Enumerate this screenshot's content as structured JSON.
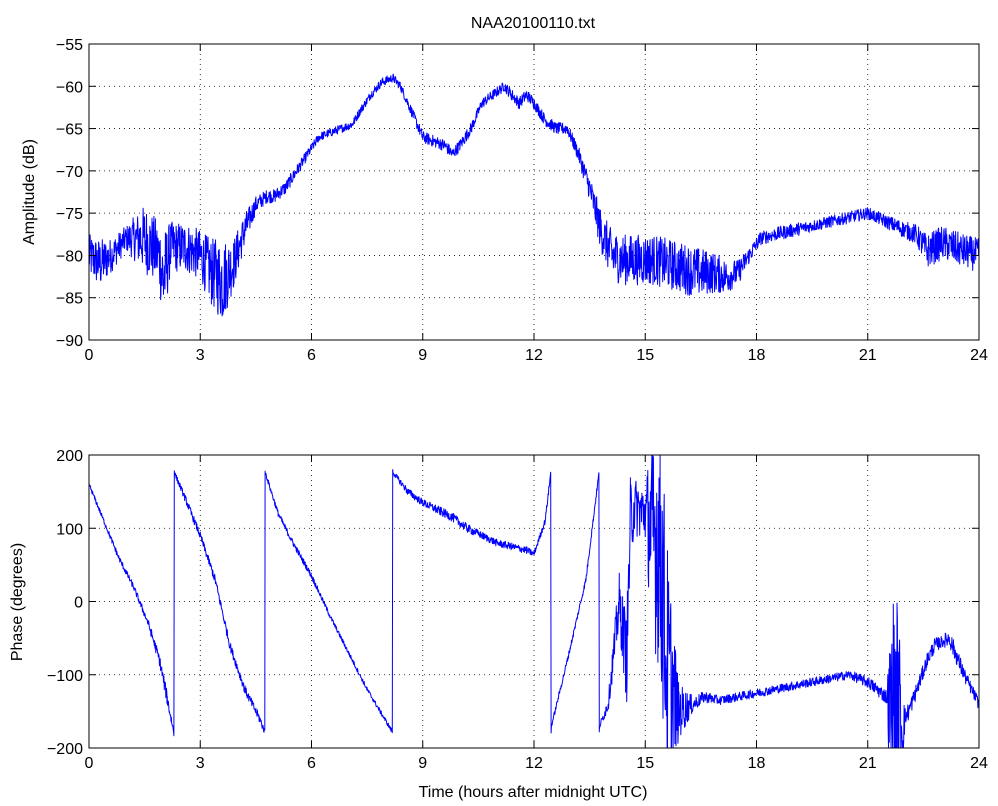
{
  "chart_data": [
    {
      "type": "line",
      "title": "NAA20100110.txt",
      "xlabel": "",
      "ylabel": "Amplitude (dB)",
      "xlim": [
        0,
        24
      ],
      "ylim": [
        -90,
        -55
      ],
      "xticks": [
        0,
        3,
        6,
        9,
        12,
        15,
        18,
        21,
        24
      ],
      "yticks": [
        -55,
        -60,
        -65,
        -70,
        -75,
        -80,
        -85,
        -90
      ],
      "grid": true,
      "color": "#0000ff",
      "series": [
        {
          "x": [
            0,
            0.3,
            0.6,
            1.0,
            1.5,
            1.9,
            2.0,
            2.2,
            2.6,
            3.0,
            3.3,
            3.6,
            3.9,
            4.2,
            4.5,
            4.8,
            5.0,
            5.3,
            5.6,
            5.9,
            6.2,
            6.5,
            6.8,
            7.1,
            7.3,
            7.6,
            7.9,
            8.2,
            8.4,
            8.7,
            9.0,
            9.3,
            9.6,
            9.8,
            10.0,
            10.3,
            10.6,
            10.9,
            11.2,
            11.4,
            11.6,
            11.8,
            12.0,
            12.3,
            12.6,
            12.9,
            13.2,
            13.5,
            13.8,
            14.1,
            14.4,
            14.8,
            15.2,
            15.6,
            16.0,
            16.4,
            16.8,
            17.2,
            17.5,
            17.8,
            18.1,
            18.5,
            19.0,
            19.5,
            20.0,
            20.5,
            21.0,
            21.5,
            22.0,
            22.3,
            22.6,
            22.8,
            23.0,
            23.3,
            23.6,
            24.0
          ],
          "y": [
            -80,
            -81,
            -80,
            -78,
            -78,
            -80,
            -83,
            -79,
            -79,
            -80,
            -82,
            -83,
            -81,
            -77,
            -74,
            -73,
            -73,
            -72,
            -70,
            -68,
            -66,
            -65.5,
            -65,
            -64.5,
            -63,
            -61,
            -59.5,
            -59,
            -60,
            -63,
            -66,
            -66.5,
            -67,
            -68,
            -67,
            -65,
            -62,
            -61,
            -60,
            -61,
            -62,
            -61,
            -62,
            -64,
            -65,
            -65,
            -68,
            -72,
            -77,
            -80,
            -80.5,
            -80.5,
            -80.5,
            -81,
            -81.5,
            -82,
            -82,
            -82.5,
            -82,
            -80,
            -78,
            -77.5,
            -77,
            -76.5,
            -76,
            -75.5,
            -75,
            -76,
            -77,
            -77.5,
            -79.5,
            -79,
            -78.5,
            -79,
            -79.5,
            -80
          ],
          "noise": [
            2.5,
            3,
            2,
            1.5,
            4,
            4,
            6,
            3,
            3,
            3,
            4,
            5,
            3,
            2,
            1,
            0.8,
            0.8,
            0.8,
            0.7,
            0.6,
            0.5,
            0.5,
            0.5,
            0.5,
            0.5,
            0.5,
            0.5,
            0.5,
            0.5,
            0.6,
            0.7,
            0.7,
            0.7,
            0.7,
            0.7,
            0.7,
            0.6,
            0.6,
            0.6,
            0.7,
            0.7,
            0.7,
            0.7,
            0.7,
            0.7,
            0.7,
            0.9,
            1.5,
            2.5,
            3,
            3,
            3,
            3,
            3,
            3,
            3,
            2.5,
            2,
            1.5,
            1,
            0.8,
            0.8,
            0.8,
            0.7,
            0.7,
            0.7,
            0.7,
            0.8,
            1,
            1.2,
            2,
            2,
            2,
            2,
            2,
            2
          ]
        }
      ]
    },
    {
      "type": "line",
      "title": "",
      "xlabel": "Time (hours after midnight UTC)",
      "ylabel": "Phase (degrees)",
      "xlim": [
        0,
        24
      ],
      "ylim": [
        -200,
        200
      ],
      "xticks": [
        0,
        3,
        6,
        9,
        12,
        15,
        18,
        21,
        24
      ],
      "yticks": [
        200,
        100,
        0,
        -100,
        -200
      ],
      "grid": true,
      "color": "#0000ff",
      "series": [
        {
          "x": [
            0,
            0.4,
            0.8,
            1.2,
            1.6,
            1.9,
            2.1,
            2.29,
            2.3,
            2.31,
            2.6,
            3.0,
            3.4,
            3.8,
            4.2,
            4.6,
            4.74,
            4.75,
            4.76,
            5.1,
            5.5,
            6.0,
            6.5,
            7.0,
            7.5,
            8.18,
            8.19,
            8.2,
            8.6,
            9.0,
            9.4,
            9.8,
            10.2,
            10.6,
            11.0,
            11.4,
            11.8,
            12.0,
            12.3,
            12.45,
            12.46,
            12.47,
            12.9,
            13.4,
            13.75,
            13.76,
            13.77,
            14.0,
            14.3,
            14.5,
            14.6,
            14.7,
            15.0,
            15.2,
            15.4,
            15.6,
            15.9,
            16.3,
            16.6,
            17.0,
            17.5,
            18.0,
            18.5,
            19.0,
            19.5,
            20.0,
            20.5,
            21.0,
            21.5,
            21.7,
            21.8,
            22.0,
            22.1,
            22.4,
            22.6,
            22.8,
            23.0,
            23.2,
            23.4,
            23.6,
            23.8,
            24.0
          ],
          "y": [
            160,
            110,
            60,
            20,
            -30,
            -80,
            -130,
            -180,
            178,
            175,
            140,
            90,
            30,
            -60,
            -120,
            -160,
            -178,
            178,
            175,
            120,
            80,
            35,
            -20,
            -70,
            -120,
            -178,
            178,
            176,
            150,
            135,
            125,
            115,
            100,
            90,
            80,
            75,
            70,
            65,
            110,
            175,
            -178,
            -170,
            -80,
            30,
            175,
            -178,
            -170,
            -140,
            0,
            -80,
            110,
            130,
            120,
            95,
            80,
            -100,
            -150,
            -140,
            -130,
            -135,
            -130,
            -125,
            -120,
            -115,
            -110,
            -105,
            -100,
            -110,
            -130,
            -160,
            -170,
            -160,
            -150,
            -110,
            -80,
            -60,
            -55,
            -50,
            -75,
            -100,
            -120,
            -140
          ],
          "noise": [
            3,
            3,
            4,
            4,
            5,
            8,
            10,
            5,
            3,
            3,
            5,
            5,
            6,
            6,
            6,
            6,
            4,
            3,
            3,
            4,
            4,
            4,
            3,
            3,
            3,
            3,
            3,
            3,
            5,
            5,
            6,
            6,
            6,
            5,
            5,
            5,
            5,
            4,
            4,
            4,
            3,
            3,
            4,
            4,
            4,
            3,
            3,
            10,
            40,
            60,
            60,
            40,
            40,
            150,
            180,
            180,
            40,
            10,
            8,
            6,
            6,
            6,
            6,
            6,
            6,
            6,
            6,
            8,
            10,
            180,
            180,
            15,
            12,
            10,
            10,
            10,
            8,
            12,
            12,
            10,
            8,
            8
          ]
        }
      ]
    }
  ]
}
